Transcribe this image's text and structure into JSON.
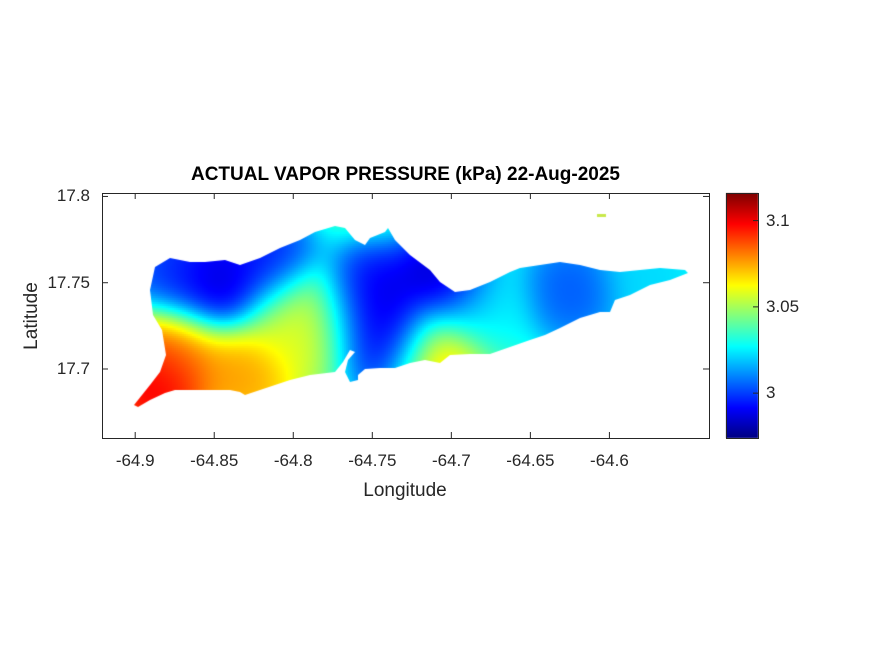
{
  "chart_data": {
    "type": "heatmap",
    "title": "ACTUAL VAPOR PRESSURE (kPa) 22-Aug-2025",
    "xlabel": "Longitude",
    "ylabel": "Latitude",
    "xlim": [
      -64.921,
      -64.537
    ],
    "ylim": [
      17.66,
      17.802
    ],
    "xticks": [
      -64.9,
      -64.85,
      -64.8,
      -64.75,
      -64.7,
      -64.65,
      -64.6
    ],
    "xtick_labels": [
      "-64.9",
      "-64.85",
      "-64.8",
      "-64.75",
      "-64.7",
      "-64.65",
      "-64.6"
    ],
    "yticks": [
      17.7,
      17.75,
      17.8
    ],
    "ytick_labels": [
      "17.7",
      "17.75",
      "17.8"
    ],
    "colormap": "jet",
    "clim": [
      2.974,
      3.116
    ],
    "colorbar_ticks": [
      3,
      3.05,
      3.1
    ],
    "colorbar_tick_labels": [
      "3",
      "3.05",
      "3.1"
    ],
    "background_value": 3.04,
    "field_points": [
      {
        "lon": -64.849,
        "lat": 17.749,
        "value": 2.978
      },
      {
        "lon": -64.875,
        "lat": 17.757,
        "value": 2.995
      },
      {
        "lon": -64.818,
        "lat": 17.76,
        "value": 2.99
      },
      {
        "lon": -64.754,
        "lat": 17.74,
        "value": 2.985
      },
      {
        "lon": -64.748,
        "lat": 17.728,
        "value": 2.98
      },
      {
        "lon": -64.742,
        "lat": 17.717,
        "value": 2.985
      },
      {
        "lon": -64.707,
        "lat": 17.749,
        "value": 2.975
      },
      {
        "lon": -64.875,
        "lat": 17.711,
        "value": 3.08
      },
      {
        "lon": -64.886,
        "lat": 17.695,
        "value": 3.112
      },
      {
        "lon": -64.834,
        "lat": 17.699,
        "value": 3.08
      },
      {
        "lon": -64.713,
        "lat": 17.71,
        "value": 3.08
      },
      {
        "lon": -64.802,
        "lat": 17.729,
        "value": 3.06
      },
      {
        "lon": -64.78,
        "lat": 17.725,
        "value": 3.062
      },
      {
        "lon": -64.625,
        "lat": 17.746,
        "value": 3.0
      },
      {
        "lon": -64.574,
        "lat": 17.754,
        "value": 3.02
      },
      {
        "lon": -64.68,
        "lat": 17.735,
        "value": 3.025
      }
    ]
  }
}
